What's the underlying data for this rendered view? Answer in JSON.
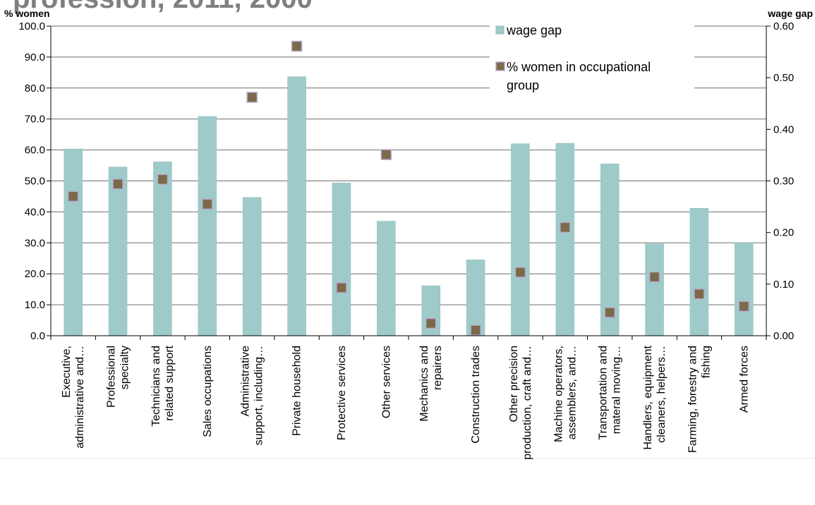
{
  "page": {
    "title_fragment": "profession, 2011, 2000"
  },
  "chart_data": {
    "type": "bar",
    "title": "",
    "left_axis_label": "% women",
    "right_axis_label": "wage gap",
    "left_ylim": [
      0,
      100
    ],
    "left_ticks": [
      "0.0",
      "10.0",
      "20.0",
      "30.0",
      "40.0",
      "50.0",
      "60.0",
      "70.0",
      "80.0",
      "90.0",
      "100.0"
    ],
    "right_ylim": [
      0,
      0.6
    ],
    "right_ticks": [
      "0.00",
      "0.10",
      "0.20",
      "0.30",
      "0.40",
      "0.50",
      "0.60"
    ],
    "grid": true,
    "legend_position": "top-right",
    "categories": [
      [
        "Executive,",
        "administrative and…"
      ],
      [
        "Professional",
        "specialty"
      ],
      [
        "Technicians and",
        "related support"
      ],
      [
        "Sales occupations"
      ],
      [
        "Administrative",
        "support, including…"
      ],
      [
        "Private household"
      ],
      [
        "Protective services"
      ],
      [
        "Other services"
      ],
      [
        "Mechanics and",
        "repairers"
      ],
      [
        "Construction trades"
      ],
      [
        "Other precision",
        "production, craft and…"
      ],
      [
        "Machine operators,",
        "assemblers, and…"
      ],
      [
        "Transportation and",
        "materal moving…"
      ],
      [
        "Handlers, equipment",
        "cleaners, helpers…"
      ],
      [
        "Farming, forestry and",
        "fishing"
      ],
      [
        "Armed forces"
      ]
    ],
    "series": [
      {
        "name": "wage gap",
        "kind": "bar",
        "axis": "right",
        "color": "#9ecbc9",
        "values": [
          0.362,
          0.327,
          0.337,
          0.425,
          0.268,
          0.502,
          0.296,
          0.222,
          0.097,
          0.147,
          0.372,
          0.373,
          0.333,
          0.178,
          0.247,
          0.18
        ]
      },
      {
        "name": "% women in occupational group",
        "kind": "marker",
        "axis": "left",
        "color": "#7a6a4a",
        "values": [
          45.0,
          49.0,
          50.5,
          42.5,
          77.0,
          93.5,
          15.5,
          58.5,
          4.0,
          1.8,
          20.5,
          35.0,
          7.5,
          19.0,
          13.5,
          9.5
        ]
      }
    ]
  }
}
